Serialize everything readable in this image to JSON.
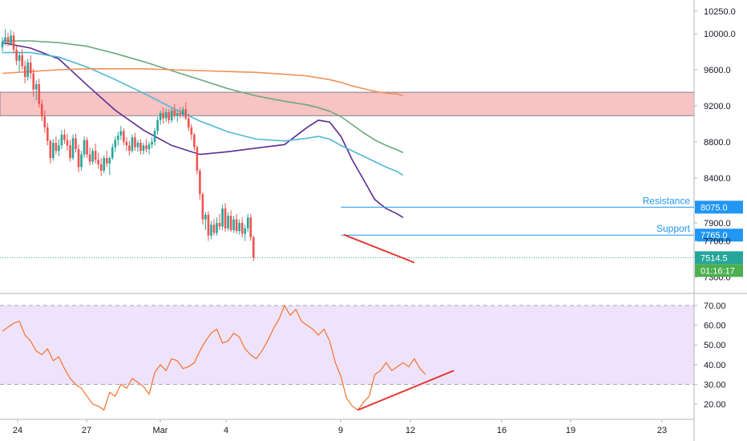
{
  "chart_data": [
    {
      "type": "candlestick",
      "price_axis": {
        "ticks": [
          "10250.0",
          "10000.0",
          "9600.0",
          "9200.0",
          "8800.0",
          "8400.0",
          "7900.0",
          "7700.0",
          "7300.0"
        ],
        "tick_values": [
          10250,
          10000,
          9600,
          9200,
          8800,
          8400,
          7900,
          7700,
          7300
        ],
        "ylim": [
          7250,
          10420
        ]
      },
      "time_axis": {
        "ticks": [
          "24",
          "27",
          "Mar",
          "4",
          "9",
          "12",
          "16",
          "19",
          "23"
        ]
      },
      "current_price": {
        "label": "7514.5",
        "value": 7514.5,
        "color": "#26a69a"
      },
      "countdown": {
        "label": "01:16:17",
        "color": "#4caf50"
      },
      "horizontal_lines": [
        {
          "name": "Resistance",
          "label": "8075.0",
          "value": 8075,
          "color": "#2196f3"
        },
        {
          "name": "Support",
          "label": "7765.0",
          "value": 7765,
          "color": "#2196f3"
        }
      ],
      "resistance_zone": {
        "from": 9090,
        "to": 9350,
        "color": "#f8c0c0",
        "border": "#787b86"
      },
      "colors": {
        "up": "#26a69a",
        "down": "#ef5350",
        "trendline": "#e53935"
      },
      "candles": [
        [
          9850,
          9960,
          9800,
          9910
        ],
        [
          9910,
          10050,
          9870,
          9960
        ],
        [
          9960,
          10010,
          9860,
          9890
        ],
        [
          9890,
          10040,
          9870,
          9980
        ],
        [
          9980,
          10020,
          9780,
          9820
        ],
        [
          9820,
          9870,
          9650,
          9700
        ],
        [
          9700,
          9800,
          9580,
          9760
        ],
        [
          9760,
          9830,
          9600,
          9640
        ],
        [
          9640,
          9700,
          9450,
          9520
        ],
        [
          9520,
          9720,
          9480,
          9680
        ],
        [
          9680,
          9760,
          9500,
          9560
        ],
        [
          9560,
          9610,
          9300,
          9380
        ],
        [
          9380,
          9480,
          9260,
          9440
        ],
        [
          9440,
          9500,
          9180,
          9220
        ],
        [
          9220,
          9270,
          9030,
          9080
        ],
        [
          9080,
          9150,
          8900,
          8960
        ],
        [
          8960,
          9010,
          8760,
          8810
        ],
        [
          8810,
          8830,
          8560,
          8620
        ],
        [
          8620,
          8830,
          8590,
          8790
        ],
        [
          8790,
          8860,
          8660,
          8700
        ],
        [
          8700,
          8830,
          8640,
          8760
        ],
        [
          8760,
          8930,
          8720,
          8880
        ],
        [
          8880,
          8940,
          8780,
          8820
        ],
        [
          8820,
          8890,
          8700,
          8760
        ],
        [
          8760,
          8820,
          8580,
          8620
        ],
        [
          8620,
          8880,
          8600,
          8840
        ],
        [
          8840,
          8890,
          8680,
          8720
        ],
        [
          8720,
          8770,
          8460,
          8520
        ],
        [
          8520,
          8700,
          8480,
          8660
        ],
        [
          8660,
          8860,
          8620,
          8820
        ],
        [
          8820,
          8850,
          8620,
          8660
        ],
        [
          8660,
          8740,
          8540,
          8580
        ],
        [
          8580,
          8730,
          8550,
          8700
        ],
        [
          8700,
          8780,
          8560,
          8600
        ],
        [
          8600,
          8680,
          8500,
          8550
        ],
        [
          8550,
          8620,
          8420,
          8480
        ],
        [
          8480,
          8650,
          8450,
          8620
        ],
        [
          8620,
          8700,
          8520,
          8560
        ],
        [
          8560,
          8640,
          8430,
          8620
        ],
        [
          8620,
          8780,
          8600,
          8740
        ],
        [
          8740,
          8860,
          8690,
          8820
        ],
        [
          8820,
          8910,
          8760,
          8870
        ],
        [
          8870,
          8980,
          8820,
          8920
        ],
        [
          8920,
          8950,
          8760,
          8800
        ],
        [
          8800,
          8850,
          8700,
          8760
        ],
        [
          8760,
          8810,
          8650,
          8700
        ],
        [
          8700,
          8880,
          8680,
          8850
        ],
        [
          8850,
          8900,
          8700,
          8740
        ],
        [
          8740,
          8820,
          8690,
          8790
        ],
        [
          8790,
          8830,
          8660,
          8700
        ],
        [
          8700,
          8790,
          8660,
          8760
        ],
        [
          8760,
          8830,
          8680,
          8720
        ],
        [
          8720,
          8800,
          8660,
          8770
        ],
        [
          8770,
          8850,
          8730,
          8800
        ],
        [
          8800,
          8950,
          8760,
          8920
        ],
        [
          8920,
          9080,
          8880,
          9040
        ],
        [
          9040,
          9150,
          8990,
          9120
        ],
        [
          9120,
          9180,
          9000,
          9060
        ],
        [
          9060,
          9170,
          9020,
          9130
        ],
        [
          9130,
          9160,
          9000,
          9040
        ],
        [
          9040,
          9180,
          9010,
          9150
        ],
        [
          9150,
          9220,
          9060,
          9090
        ],
        [
          9090,
          9150,
          9020,
          9120
        ],
        [
          9120,
          9180,
          9060,
          9100
        ],
        [
          9100,
          9190,
          9070,
          9160
        ],
        [
          9160,
          9240,
          9040,
          9060
        ],
        [
          9060,
          9110,
          8920,
          8960
        ],
        [
          8960,
          9000,
          8820,
          8880
        ],
        [
          8880,
          8900,
          8700,
          8740
        ],
        [
          8740,
          8760,
          8440,
          8480
        ],
        [
          8480,
          8500,
          8160,
          8220
        ],
        [
          8220,
          8240,
          7880,
          7940
        ],
        [
          7940,
          8020,
          7820,
          7990
        ],
        [
          7990,
          8030,
          7700,
          7760
        ],
        [
          7760,
          7920,
          7720,
          7880
        ],
        [
          7880,
          7940,
          7760,
          7790
        ],
        [
          7790,
          7960,
          7760,
          7900
        ],
        [
          7900,
          8000,
          7820,
          7860
        ],
        [
          7860,
          8100,
          7820,
          8060
        ],
        [
          8060,
          8120,
          7800,
          7840
        ],
        [
          7840,
          8020,
          7810,
          7980
        ],
        [
          7980,
          8040,
          7800,
          7820
        ],
        [
          7820,
          7980,
          7790,
          7940
        ],
        [
          7940,
          8000,
          7780,
          7810
        ],
        [
          7810,
          7940,
          7770,
          7900
        ],
        [
          7900,
          7960,
          7740,
          7780
        ],
        [
          7780,
          7880,
          7700,
          7840
        ],
        [
          7840,
          8000,
          7800,
          7960
        ],
        [
          7960,
          8000,
          7700,
          7740
        ],
        [
          7740,
          7760,
          7480,
          7514.5
        ]
      ],
      "moving_averages": [
        {
          "name": "MA purple",
          "color": "#5c2d91",
          "points": [
            [
              0,
              9900
            ],
            [
              10,
              9840
            ],
            [
              20,
              9720
            ],
            [
              30,
              9430
            ],
            [
              40,
              9150
            ],
            [
              50,
              8930
            ],
            [
              60,
              8760
            ],
            [
              70,
              8660
            ],
            [
              80,
              8690
            ],
            [
              90,
              8730
            ],
            [
              100,
              8770
            ],
            [
              108,
              8960
            ],
            [
              112,
              9040
            ],
            [
              116,
              9020
            ],
            [
              120,
              8860
            ],
            [
              124,
              8600
            ],
            [
              128,
              8380
            ],
            [
              132,
              8160
            ],
            [
              136,
              8060
            ],
            [
              140,
              8000
            ],
            [
              142,
              7960
            ]
          ]
        },
        {
          "name": "MA cyan",
          "color": "#4fb8d6",
          "points": [
            [
              0,
              9790
            ],
            [
              10,
              9790
            ],
            [
              20,
              9740
            ],
            [
              30,
              9630
            ],
            [
              40,
              9490
            ],
            [
              50,
              9340
            ],
            [
              60,
              9180
            ],
            [
              70,
              9030
            ],
            [
              80,
              8910
            ],
            [
              90,
              8830
            ],
            [
              100,
              8810
            ],
            [
              108,
              8840
            ],
            [
              112,
              8860
            ],
            [
              116,
              8830
            ],
            [
              120,
              8760
            ],
            [
              124,
              8700
            ],
            [
              128,
              8640
            ],
            [
              132,
              8580
            ],
            [
              136,
              8520
            ],
            [
              140,
              8470
            ],
            [
              142,
              8430
            ]
          ]
        },
        {
          "name": "MA green",
          "color": "#6aa97a",
          "points": [
            [
              0,
              9920
            ],
            [
              10,
              9920
            ],
            [
              20,
              9900
            ],
            [
              30,
              9860
            ],
            [
              40,
              9780
            ],
            [
              50,
              9690
            ],
            [
              60,
              9590
            ],
            [
              70,
              9490
            ],
            [
              80,
              9390
            ],
            [
              90,
              9310
            ],
            [
              100,
              9250
            ],
            [
              108,
              9210
            ],
            [
              112,
              9180
            ],
            [
              116,
              9140
            ],
            [
              120,
              9080
            ],
            [
              124,
              8990
            ],
            [
              128,
              8900
            ],
            [
              132,
              8820
            ],
            [
              136,
              8760
            ],
            [
              140,
              8710
            ],
            [
              142,
              8680
            ]
          ]
        },
        {
          "name": "MA orange",
          "color": "#f0915a",
          "points": [
            [
              0,
              9560
            ],
            [
              10,
              9580
            ],
            [
              20,
              9600
            ],
            [
              30,
              9610
            ],
            [
              40,
              9610
            ],
            [
              50,
              9610
            ],
            [
              60,
              9600
            ],
            [
              70,
              9590
            ],
            [
              80,
              9580
            ],
            [
              90,
              9570
            ],
            [
              100,
              9550
            ],
            [
              108,
              9530
            ],
            [
              112,
              9510
            ],
            [
              116,
              9490
            ],
            [
              120,
              9460
            ],
            [
              124,
              9420
            ],
            [
              128,
              9390
            ],
            [
              132,
              9360
            ],
            [
              136,
              9340
            ],
            [
              140,
              9330
            ],
            [
              142,
              9310
            ]
          ]
        }
      ],
      "trendline": {
        "points": [
          [
            121,
            7770
          ],
          [
            146,
            7460
          ]
        ],
        "color": "#e53935"
      }
    },
    {
      "type": "line",
      "name": "RSI",
      "ticks": [
        "70.00",
        "60.00",
        "50.00",
        "40.00",
        "30.00",
        "20.00"
      ],
      "tick_values": [
        70,
        60,
        50,
        40,
        30,
        20
      ],
      "ylim": [
        13,
        73
      ],
      "band": {
        "upper": 70,
        "lower": 30,
        "color": "#efe3fb"
      },
      "line_color": "#f4722b",
      "values": [
        [
          0,
          57
        ],
        [
          2,
          59
        ],
        [
          4,
          61
        ],
        [
          6,
          62
        ],
        [
          8,
          55
        ],
        [
          10,
          52
        ],
        [
          12,
          47
        ],
        [
          14,
          45
        ],
        [
          16,
          48
        ],
        [
          18,
          42
        ],
        [
          20,
          44
        ],
        [
          22,
          38
        ],
        [
          24,
          33
        ],
        [
          26,
          30
        ],
        [
          28,
          28
        ],
        [
          30,
          24
        ],
        [
          32,
          20
        ],
        [
          34,
          19
        ],
        [
          36,
          17
        ],
        [
          38,
          26
        ],
        [
          40,
          24
        ],
        [
          42,
          30
        ],
        [
          44,
          28
        ],
        [
          46,
          33
        ],
        [
          48,
          31
        ],
        [
          50,
          29
        ],
        [
          52,
          25
        ],
        [
          54,
          36
        ],
        [
          56,
          40
        ],
        [
          58,
          37
        ],
        [
          60,
          43
        ],
        [
          62,
          42
        ],
        [
          64,
          38
        ],
        [
          66,
          39
        ],
        [
          68,
          41
        ],
        [
          70,
          47
        ],
        [
          72,
          52
        ],
        [
          74,
          56
        ],
        [
          76,
          58
        ],
        [
          78,
          51
        ],
        [
          80,
          52
        ],
        [
          82,
          56
        ],
        [
          84,
          54
        ],
        [
          86,
          48
        ],
        [
          88,
          45
        ],
        [
          90,
          43
        ],
        [
          92,
          47
        ],
        [
          94,
          52
        ],
        [
          96,
          58
        ],
        [
          98,
          63
        ],
        [
          100,
          70
        ],
        [
          102,
          65
        ],
        [
          104,
          68
        ],
        [
          106,
          62
        ],
        [
          108,
          60
        ],
        [
          110,
          58
        ],
        [
          112,
          55
        ],
        [
          114,
          58
        ],
        [
          116,
          52
        ],
        [
          118,
          41
        ],
        [
          120,
          34
        ],
        [
          122,
          23
        ],
        [
          124,
          19
        ],
        [
          126,
          17
        ],
        [
          128,
          21
        ],
        [
          130,
          24
        ],
        [
          132,
          35
        ],
        [
          134,
          37
        ],
        [
          136,
          41
        ],
        [
          138,
          37
        ],
        [
          140,
          39
        ],
        [
          142,
          41
        ],
        [
          144,
          39
        ],
        [
          146,
          43
        ],
        [
          148,
          38
        ],
        [
          150,
          35
        ]
      ],
      "trendline": {
        "points": [
          [
            126,
            17
          ],
          [
            160,
            37
          ]
        ],
        "color": "#e53935"
      }
    }
  ]
}
